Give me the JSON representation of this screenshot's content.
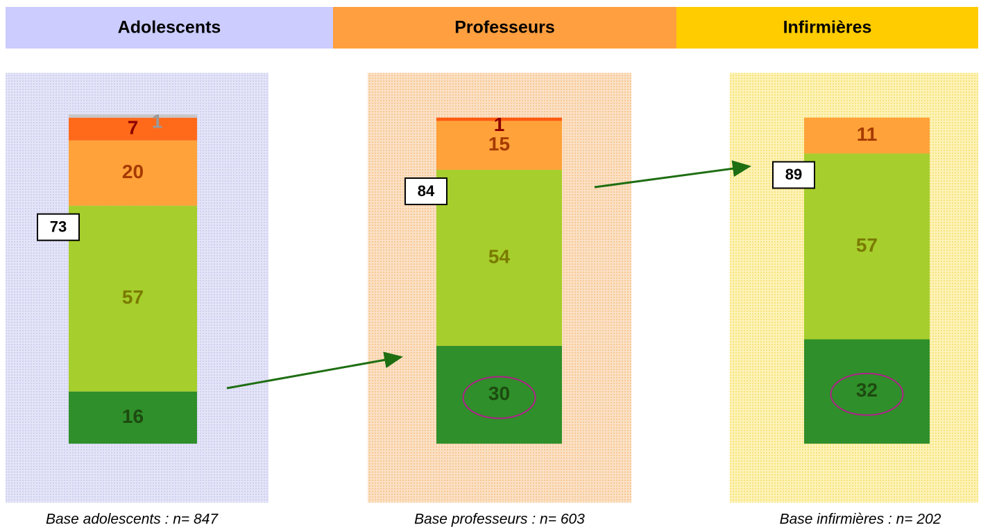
{
  "chart_data": [
    {
      "type": "bar",
      "title": "Adolescents",
      "note": "Base adolescents : n= 847",
      "total": 73,
      "ylim": [
        0,
        101
      ],
      "series": [
        {
          "color": "#2f8f2a",
          "label_color": "#1d4a10",
          "values": [
            16
          ]
        },
        {
          "color": "#a6ce2c",
          "label_color": "#7a7a00",
          "values": [
            57
          ]
        },
        {
          "color": "#ffa23a",
          "label_color": "#a63a00",
          "values": [
            20
          ]
        },
        {
          "color": "#ff6a1a",
          "label_color": "#8b0000",
          "values": [
            7
          ]
        },
        {
          "color": "#c8c8c8",
          "label_color": "#999999",
          "values": [
            1
          ]
        }
      ]
    },
    {
      "type": "bar",
      "title": "Professeurs",
      "note": "Base professeurs : n= 603",
      "total": 84,
      "ylim": [
        0,
        101
      ],
      "series": [
        {
          "color": "#2f8f2a",
          "label_color": "#1d4a10",
          "values": [
            30
          ]
        },
        {
          "color": "#a6ce2c",
          "label_color": "#7a7a00",
          "values": [
            54
          ]
        },
        {
          "color": "#ffa23a",
          "label_color": "#a63a00",
          "values": [
            15
          ]
        },
        {
          "color": "#ff5a10",
          "label_color": "#8b0000",
          "values": [
            1
          ]
        }
      ]
    },
    {
      "type": "bar",
      "title": "Infirmières",
      "note": "Base infirmières : n= 202",
      "total": 89,
      "ylim": [
        0,
        101
      ],
      "series": [
        {
          "color": "#2f8f2a",
          "label_color": "#1d4a10",
          "values": [
            32
          ]
        },
        {
          "color": "#a6ce2c",
          "label_color": "#7a7a00",
          "values": [
            57
          ]
        },
        {
          "color": "#ffa23a",
          "label_color": "#a63a00",
          "values": [
            11
          ]
        }
      ]
    }
  ]
}
